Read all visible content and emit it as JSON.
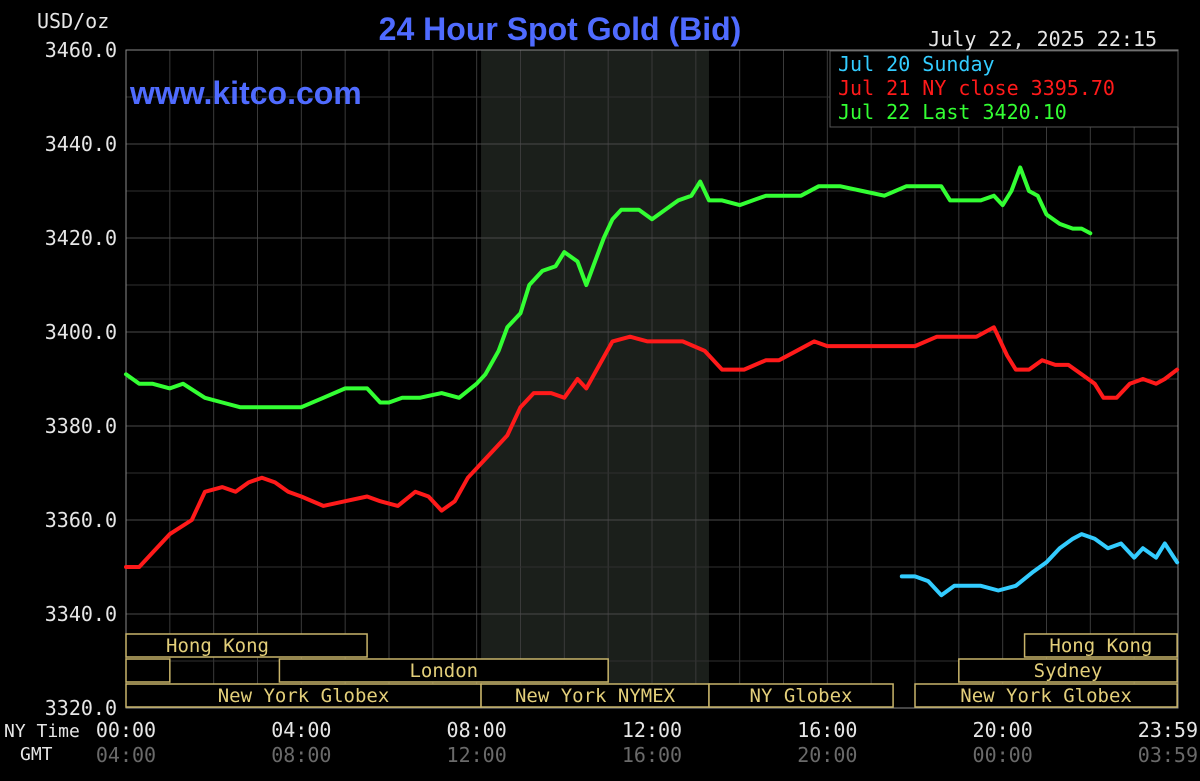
{
  "chart_data": {
    "type": "line",
    "title": "24 Hour Spot Gold (Bid)",
    "unit_label": "USD/oz",
    "watermark": "www.kitco.com",
    "timestamp": "July 22, 2025 22:15",
    "ylim": [
      3320,
      3460
    ],
    "yticks": [
      "3460.0",
      "3440.0",
      "3420.0",
      "3400.0",
      "3380.0",
      "3360.0",
      "3340.0",
      "3320.0"
    ],
    "ytick_values": [
      3460,
      3440,
      3420,
      3400,
      3380,
      3360,
      3340,
      3320
    ],
    "xlim": [
      0,
      24
    ],
    "xticks_ny": [
      "00:00",
      "04:00",
      "08:00",
      "12:00",
      "16:00",
      "20:00",
      "23:59"
    ],
    "xticks_gmt": [
      "04:00",
      "08:00",
      "12:00",
      "16:00",
      "20:00",
      "00:00",
      "03:59"
    ],
    "xtick_hours": [
      0,
      4,
      8,
      12,
      16,
      20,
      23.98
    ],
    "row_label_ny": "NY Time",
    "row_label_gmt": "GMT",
    "grid": true,
    "legend_position": "top-right",
    "legend": [
      "Jul 20 Sunday",
      "Jul 21 NY close 3395.70",
      "Jul 22 Last 3420.10"
    ],
    "shaded_region_hours": [
      8.1,
      13.3
    ],
    "markets": {
      "hong_kong_left": "Hong Kong",
      "london": "London",
      "ny_globex_left": "New York Globex",
      "ny_nymex": "New York NYMEX",
      "ny_globex_mid": "NY Globex",
      "hong_kong_right": "Hong Kong",
      "sydney": "Sydney",
      "ny_globex_right": "New York Globex"
    },
    "series": [
      {
        "name": "Jul 20 Sunday",
        "color": "#33ccff",
        "x": [
          17.7,
          18.0,
          18.3,
          18.6,
          18.9,
          19.2,
          19.5,
          19.9,
          20.3,
          20.7,
          21.0,
          21.3,
          21.6,
          21.8,
          22.1,
          22.4,
          22.7,
          23.0,
          23.2,
          23.5,
          23.7,
          23.98
        ],
        "y": [
          3348,
          3348,
          3347,
          3344,
          3346,
          3346,
          3346,
          3345,
          3346,
          3349,
          3351,
          3354,
          3356,
          3357,
          3356,
          3354,
          3355,
          3352,
          3354,
          3352,
          3355,
          3351
        ]
      },
      {
        "name": "Jul 21 NY close 3395.70",
        "color": "#ff1a1a",
        "x": [
          0,
          0.3,
          0.6,
          1.0,
          1.5,
          1.8,
          2.2,
          2.5,
          2.8,
          3.1,
          3.4,
          3.7,
          4.0,
          4.5,
          5.0,
          5.5,
          5.8,
          6.2,
          6.6,
          6.9,
          7.2,
          7.5,
          7.8,
          8.1,
          8.4,
          8.7,
          9.0,
          9.3,
          9.7,
          10.0,
          10.3,
          10.5,
          10.8,
          11.1,
          11.5,
          11.9,
          12.2,
          12.7,
          13.2,
          13.6,
          14.1,
          14.6,
          14.9,
          15.3,
          15.7,
          16.0,
          16.5,
          17.0,
          17.5,
          18.0,
          18.5,
          19.0,
          19.4,
          19.8,
          20.1,
          20.3,
          20.6,
          20.9,
          21.2,
          21.5,
          21.8,
          22.1,
          22.3,
          22.6,
          22.9,
          23.2,
          23.5,
          23.7,
          23.98
        ],
        "y": [
          3350,
          3350,
          3353,
          3357,
          3360,
          3366,
          3367,
          3366,
          3368,
          3369,
          3368,
          3366,
          3365,
          3363,
          3364,
          3365,
          3364,
          3363,
          3366,
          3365,
          3362,
          3364,
          3369,
          3372,
          3375,
          3378,
          3384,
          3387,
          3387,
          3386,
          3390,
          3388,
          3393,
          3398,
          3399,
          3398,
          3398,
          3398,
          3396,
          3392,
          3392,
          3394,
          3394,
          3396,
          3398,
          3397,
          3397,
          3397,
          3397,
          3397,
          3399,
          3399,
          3399,
          3401,
          3395,
          3392,
          3392,
          3394,
          3393,
          3393,
          3391,
          3389,
          3386,
          3386,
          3389,
          3390,
          3389,
          3390,
          3392
        ]
      },
      {
        "name": "Jul 22 Last 3420.10",
        "color": "#33ff33",
        "x": [
          0,
          0.3,
          0.6,
          1.0,
          1.3,
          1.8,
          2.2,
          2.6,
          3.0,
          3.4,
          4.0,
          4.5,
          5.0,
          5.5,
          5.8,
          6.0,
          6.3,
          6.7,
          7.2,
          7.6,
          8.0,
          8.2,
          8.5,
          8.7,
          9.0,
          9.2,
          9.5,
          9.8,
          10.0,
          10.3,
          10.5,
          10.7,
          10.9,
          11.1,
          11.3,
          11.5,
          11.7,
          12.0,
          12.3,
          12.6,
          12.9,
          13.1,
          13.3,
          13.6,
          14.0,
          14.3,
          14.6,
          15.0,
          15.4,
          15.8,
          16.3,
          16.8,
          17.3,
          17.8,
          18.3,
          18.6,
          18.8,
          19.2,
          19.5,
          19.8,
          20.0,
          20.2,
          20.4,
          20.6,
          20.8,
          21.0,
          21.3,
          21.6,
          21.8,
          22.0
        ],
        "y": [
          3391,
          3389,
          3389,
          3388,
          3389,
          3386,
          3385,
          3384,
          3384,
          3384,
          3384,
          3386,
          3388,
          3388,
          3385,
          3385,
          3386,
          3386,
          3387,
          3386,
          3389,
          3391,
          3396,
          3401,
          3404,
          3410,
          3413,
          3414,
          3417,
          3415,
          3410,
          3415,
          3420,
          3424,
          3426,
          3426,
          3426,
          3424,
          3426,
          3428,
          3429,
          3432,
          3428,
          3428,
          3427,
          3428,
          3429,
          3429,
          3429,
          3431,
          3431,
          3430,
          3429,
          3431,
          3431,
          3431,
          3428,
          3428,
          3428,
          3429,
          3427,
          3430,
          3435,
          3430,
          3429,
          3425,
          3423,
          3422,
          3422,
          3421
        ]
      }
    ]
  }
}
